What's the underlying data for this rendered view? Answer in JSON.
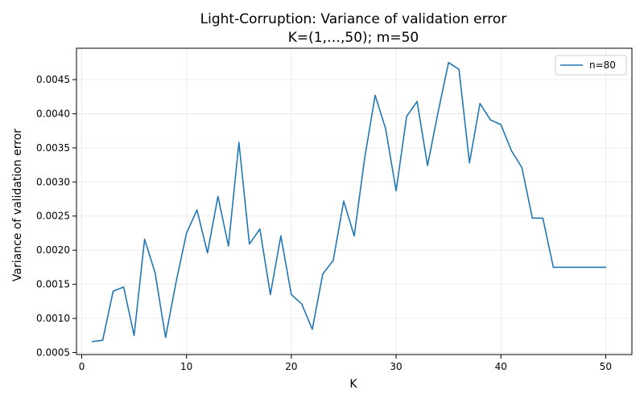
{
  "chart_data": {
    "type": "line",
    "title": "Light-Corruption: Variance of validation error",
    "subtitle": "K=(1,…,50); m=50",
    "xlabel": "K",
    "ylabel": "Variance of validation error",
    "xlim": [
      -0.5,
      52.5
    ],
    "ylim": [
      0.00047,
      0.00496
    ],
    "xticks": [
      0,
      10,
      20,
      30,
      40,
      50
    ],
    "xtick_labels": [
      "0",
      "10",
      "20",
      "30",
      "40",
      "50"
    ],
    "yticks": [
      0.0005,
      0.001,
      0.0015,
      0.002,
      0.0025,
      0.003,
      0.0035,
      0.004,
      0.0045
    ],
    "ytick_labels": [
      "0.0005",
      "0.0010",
      "0.0015",
      "0.0020",
      "0.0025",
      "0.0030",
      "0.0035",
      "0.0040",
      "0.0045"
    ],
    "grid": true,
    "legend_position": "top-right",
    "x": [
      1,
      2,
      3,
      4,
      5,
      6,
      7,
      8,
      9,
      10,
      11,
      12,
      13,
      14,
      15,
      16,
      17,
      18,
      19,
      20,
      21,
      22,
      23,
      24,
      25,
      26,
      27,
      28,
      29,
      30,
      31,
      32,
      33,
      34,
      35,
      36,
      37,
      38,
      39,
      40,
      41,
      42,
      43,
      44,
      45,
      46,
      47,
      48,
      49,
      50
    ],
    "series": [
      {
        "name": "n=80",
        "color": "#1f77b4",
        "values": [
          0.00066,
          0.00068,
          0.0014,
          0.00146,
          0.00075,
          0.00216,
          0.00167,
          0.00072,
          0.00153,
          0.00225,
          0.00259,
          0.00196,
          0.00279,
          0.00206,
          0.00358,
          0.00209,
          0.00231,
          0.00135,
          0.00221,
          0.00135,
          0.00121,
          0.00084,
          0.00165,
          0.00185,
          0.00272,
          0.00221,
          0.00335,
          0.00427,
          0.00378,
          0.00287,
          0.00396,
          0.00418,
          0.00324,
          0.00402,
          0.00475,
          0.00465,
          0.00328,
          0.00415,
          0.00391,
          0.00384,
          0.00346,
          0.00321,
          0.00247,
          0.00247,
          0.00175,
          0.00175,
          0.00175,
          0.00175,
          0.00175,
          0.00175
        ]
      }
    ]
  }
}
